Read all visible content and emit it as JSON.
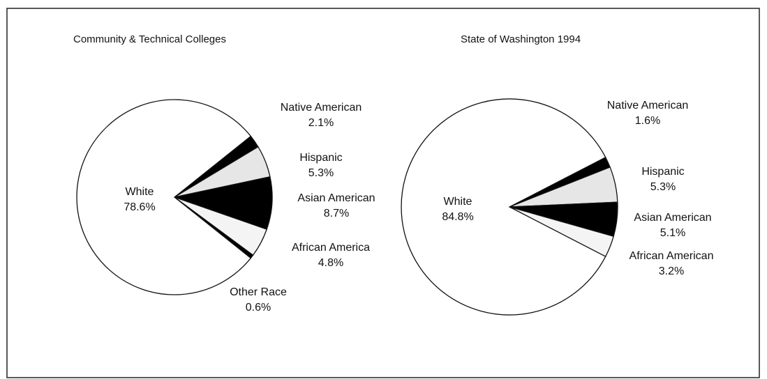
{
  "chart_data": [
    {
      "type": "pie",
      "title": "Community & Technical Colleges",
      "categories": [
        "Native American",
        "Hispanic",
        "Asian American",
        "African America",
        "Other Race",
        "White"
      ],
      "values": [
        2.1,
        5.3,
        8.7,
        4.8,
        0.6,
        78.6
      ],
      "value_labels": [
        "2.1%",
        "5.3%",
        "8.7%",
        "4.8%",
        "0.6%",
        "78.6%"
      ],
      "colors": [
        "#000000",
        "#e6e6e6",
        "#000000",
        "#f4f4f4",
        "#000000",
        "#ffffff"
      ]
    },
    {
      "type": "pie",
      "title": "State of Washington 1994",
      "categories": [
        "Native American",
        "Hispanic",
        "Asian American",
        "African American",
        "White"
      ],
      "values": [
        1.6,
        5.3,
        5.1,
        3.2,
        84.8
      ],
      "value_labels": [
        "1.6%",
        "5.3%",
        "5.1%",
        "3.2%",
        "84.8%"
      ],
      "colors": [
        "#000000",
        "#e6e6e6",
        "#000000",
        "#f4f4f4",
        "#ffffff"
      ]
    }
  ]
}
